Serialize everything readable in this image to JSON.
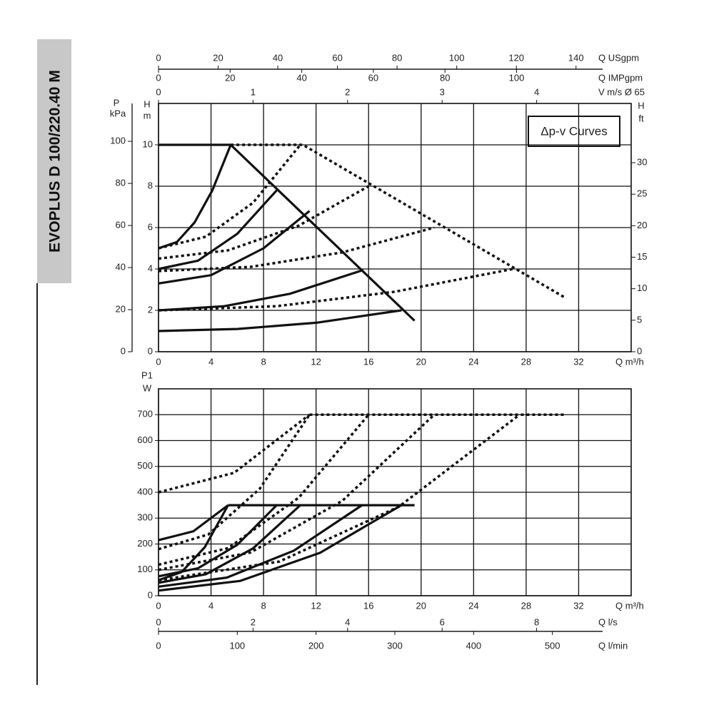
{
  "title": "EVOPLUS D 100/220.40 M",
  "chart_data": [
    {
      "type": "line",
      "annotation": "Δp-v Curves",
      "xlabel": "Q m³/h",
      "ylabel": "H",
      "yunit": "m",
      "xlim": [
        0,
        36
      ],
      "xticks": [
        0,
        4,
        8,
        12,
        16,
        20,
        24,
        28,
        32
      ],
      "ylim": [
        0,
        12
      ],
      "yticks": [
        0,
        2,
        4,
        6,
        8,
        10
      ],
      "grid": true,
      "extra_axes": [
        {
          "side": "left",
          "label": "P",
          "unit": "kPa",
          "lim": [
            0,
            118
          ],
          "ticks": [
            0,
            20,
            40,
            60,
            80,
            100
          ]
        },
        {
          "side": "right",
          "label": "H",
          "unit": "ft",
          "lim": [
            0,
            39.4
          ],
          "ticks": [
            0,
            5,
            10,
            15,
            20,
            25,
            30
          ]
        },
        {
          "side": "top",
          "label": "Q USgpm",
          "lim": [
            0,
            158.5
          ],
          "ticks": [
            0,
            20,
            40,
            60,
            80,
            100,
            120,
            140
          ]
        },
        {
          "side": "top",
          "label": "Q IMPgpm",
          "lim": [
            0,
            132
          ],
          "ticks": [
            0,
            20,
            40,
            60,
            80,
            100
          ]
        },
        {
          "side": "top",
          "label": "V m/s Ø 65",
          "lim": [
            0,
            5
          ],
          "ticks": [
            0,
            1,
            2,
            3,
            4
          ]
        }
      ],
      "series": [
        {
          "color": "#111111",
          "style": "solid",
          "x": [
            0,
            5.5,
            19.5
          ],
          "values": [
            10,
            10,
            1.5
          ]
        },
        {
          "color": "#111111",
          "style": "solid",
          "x": [
            0,
            1.4,
            2.75,
            4.1,
            5.5
          ],
          "values": [
            5,
            5.3,
            6.25,
            7.8,
            10
          ]
        },
        {
          "color": "#111111",
          "style": "solid",
          "x": [
            0,
            3,
            6,
            9
          ],
          "values": [
            4,
            4.4,
            5.7,
            7.8
          ]
        },
        {
          "color": "#111111",
          "style": "solid",
          "x": [
            0,
            4,
            8,
            11.5
          ],
          "values": [
            3.3,
            3.7,
            5,
            6.8
          ]
        },
        {
          "color": "#111111",
          "style": "solid",
          "x": [
            0,
            5,
            10,
            15.6
          ],
          "values": [
            2,
            2.2,
            2.8,
            3.95
          ]
        },
        {
          "color": "#111111",
          "style": "solid",
          "x": [
            0,
            6,
            12,
            18.5
          ],
          "values": [
            1,
            1.1,
            1.4,
            2
          ]
        },
        {
          "color": "#111111",
          "style": "dotted",
          "x": [
            5.5,
            11,
            31
          ],
          "values": [
            10,
            10,
            2.6
          ]
        },
        {
          "color": "#111111",
          "style": "dotted",
          "x": [
            0,
            3.6,
            7.2,
            10.8
          ],
          "values": [
            5,
            5.56,
            7.2,
            10
          ]
        },
        {
          "color": "#111111",
          "style": "dotted",
          "x": [
            0,
            5.3,
            10.7,
            16
          ],
          "values": [
            4.5,
            4.9,
            6.1,
            8
          ]
        },
        {
          "color": "#111111",
          "style": "dotted",
          "x": [
            0,
            7,
            14,
            21
          ],
          "values": [
            3.9,
            4.1,
            4.8,
            6
          ]
        },
        {
          "color": "#111111",
          "style": "dotted",
          "x": [
            0,
            9,
            18,
            27
          ],
          "values": [
            2,
            2.2,
            2.9,
            4
          ]
        }
      ]
    },
    {
      "type": "line",
      "xlabel": "Q m³/h",
      "ylabel": "P1",
      "yunit": "W",
      "xlim": [
        0,
        36
      ],
      "xticks": [
        0,
        4,
        8,
        12,
        16,
        20,
        24,
        28,
        32
      ],
      "ylim": [
        0,
        800
      ],
      "yticks": [
        0,
        100,
        200,
        300,
        400,
        500,
        600,
        700
      ],
      "grid": true,
      "extra_axes": [
        {
          "side": "bottom",
          "label": "Q l/s",
          "lim": [
            0,
            10
          ],
          "ticks": [
            0,
            2,
            4,
            6,
            8
          ]
        },
        {
          "side": "bottom",
          "label": "Q l/min",
          "lim": [
            0,
            600
          ],
          "ticks": [
            0,
            100,
            200,
            300,
            400,
            500
          ]
        }
      ],
      "series": [
        {
          "color": "#111111",
          "style": "solid",
          "x": [
            5.3,
            19.5
          ],
          "values": [
            350,
            350
          ]
        },
        {
          "color": "#111111",
          "style": "solid",
          "x": [
            0,
            2.65,
            5.3
          ],
          "values": [
            215,
            249,
            350
          ]
        },
        {
          "color": "#111111",
          "style": "solid",
          "x": [
            0,
            1.77,
            3.53,
            5.3
          ],
          "values": [
            60,
            92,
            188,
            350
          ]
        },
        {
          "color": "#111111",
          "style": "solid",
          "x": [
            0,
            3,
            6,
            9
          ],
          "values": [
            75,
            106,
            197,
            350
          ]
        },
        {
          "color": "#111111",
          "style": "solid",
          "x": [
            0,
            3.6,
            7.2,
            10.8
          ],
          "values": [
            50,
            83,
            183,
            350
          ]
        },
        {
          "color": "#111111",
          "style": "solid",
          "x": [
            0,
            5.2,
            10.3,
            15.5
          ],
          "values": [
            35,
            70,
            174,
            350
          ]
        },
        {
          "color": "#111111",
          "style": "solid",
          "x": [
            0,
            6.2,
            12.3,
            18.5
          ],
          "values": [
            20,
            57,
            166,
            350
          ]
        },
        {
          "color": "#111111",
          "style": "dotted",
          "x": [
            11.5,
            31
          ],
          "values": [
            700,
            700
          ]
        },
        {
          "color": "#111111",
          "style": "dotted",
          "x": [
            0,
            5.75,
            11.5
          ],
          "values": [
            400,
            475,
            700
          ]
        },
        {
          "color": "#111111",
          "style": "dotted",
          "x": [
            0,
            3.8,
            7.7,
            11.5
          ],
          "values": [
            180,
            237,
            413,
            700
          ]
        },
        {
          "color": "#111111",
          "style": "dotted",
          "x": [
            0,
            5.3,
            10.7,
            16
          ],
          "values": [
            120,
            184,
            380,
            700
          ]
        },
        {
          "color": "#111111",
          "style": "dotted",
          "x": [
            0,
            7,
            14,
            21
          ],
          "values": [
            100,
            167,
            367,
            700
          ]
        },
        {
          "color": "#111111",
          "style": "dotted",
          "x": [
            0,
            9.2,
            18.3,
            27.5
          ],
          "values": [
            60,
            132,
            344,
            700
          ]
        }
      ]
    }
  ]
}
